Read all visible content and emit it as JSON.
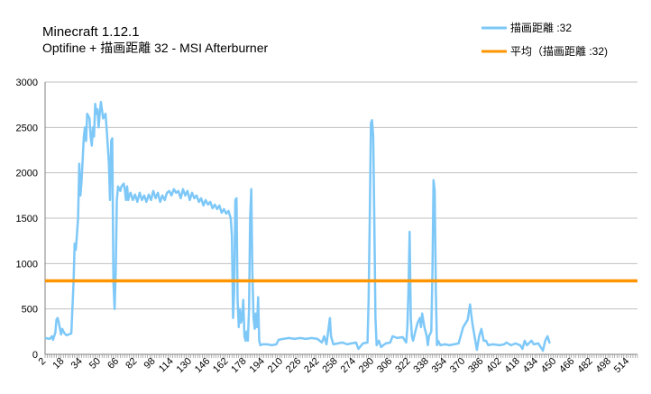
{
  "chart_data": {
    "type": "line",
    "title": "Minecraft 1.12.1",
    "subtitle": "Optifine +  描画距離 32 - MSI Afterburner",
    "ylim": [
      0,
      3000
    ],
    "y_ticks": [
      0,
      500,
      1000,
      1500,
      2000,
      2500,
      3000
    ],
    "x_range": [
      1,
      521
    ],
    "x_tick_labels": [
      "2",
      "18",
      "34",
      "50",
      "66",
      "82",
      "98",
      "114",
      "130",
      "146",
      "162",
      "178",
      "194",
      "210",
      "226",
      "242",
      "258",
      "274",
      "290",
      "306",
      "322",
      "338",
      "354",
      "370",
      "386",
      "402",
      "418",
      "434",
      "450",
      "466",
      "482",
      "498",
      "514"
    ],
    "grid": "horizontal",
    "legend_position": "top-right",
    "colors": {
      "series": "#7ec8f8",
      "average": "#ff9500",
      "grid": "#c0c0c0",
      "axis": "#808080"
    },
    "series": [
      {
        "name": "描画距離 :32",
        "points": [
          [
            1,
            180
          ],
          [
            5,
            170
          ],
          [
            7,
            200
          ],
          [
            8,
            160
          ],
          [
            10,
            240
          ],
          [
            11,
            380
          ],
          [
            12,
            400
          ],
          [
            13,
            350
          ],
          [
            15,
            220
          ],
          [
            16,
            280
          ],
          [
            18,
            230
          ],
          [
            20,
            210
          ],
          [
            24,
            230
          ],
          [
            26,
            800
          ],
          [
            27,
            1220
          ],
          [
            28,
            1150
          ],
          [
            30,
            1500
          ],
          [
            31,
            2100
          ],
          [
            32,
            1750
          ],
          [
            33,
            1900
          ],
          [
            35,
            2400
          ],
          [
            36,
            2500
          ],
          [
            37,
            2350
          ],
          [
            38,
            2650
          ],
          [
            40,
            2600
          ],
          [
            41,
            2400
          ],
          [
            42,
            2300
          ],
          [
            43,
            2500
          ],
          [
            44,
            2400
          ],
          [
            45,
            2760
          ],
          [
            46,
            2650
          ],
          [
            47,
            2700
          ],
          [
            48,
            2500
          ],
          [
            49,
            2650
          ],
          [
            50,
            2780
          ],
          [
            52,
            2600
          ],
          [
            54,
            2650
          ],
          [
            55,
            2500
          ],
          [
            57,
            2100
          ],
          [
            58,
            1700
          ],
          [
            59,
            2350
          ],
          [
            60,
            2380
          ],
          [
            61,
            800
          ],
          [
            62,
            500
          ],
          [
            63,
            900
          ],
          [
            64,
            1700
          ],
          [
            65,
            1850
          ],
          [
            67,
            1800
          ],
          [
            68,
            1850
          ],
          [
            70,
            1880
          ],
          [
            71,
            1820
          ],
          [
            72,
            1700
          ],
          [
            73,
            1850
          ],
          [
            74,
            1700
          ],
          [
            75,
            1750
          ],
          [
            76,
            1780
          ],
          [
            78,
            1700
          ],
          [
            80,
            1760
          ],
          [
            82,
            1680
          ],
          [
            84,
            1780
          ],
          [
            86,
            1700
          ],
          [
            88,
            1750
          ],
          [
            90,
            1680
          ],
          [
            92,
            1760
          ],
          [
            94,
            1700
          ],
          [
            96,
            1800
          ],
          [
            98,
            1720
          ],
          [
            100,
            1780
          ],
          [
            102,
            1680
          ],
          [
            104,
            1750
          ],
          [
            106,
            1700
          ],
          [
            108,
            1780
          ],
          [
            110,
            1800
          ],
          [
            112,
            1750
          ],
          [
            114,
            1820
          ],
          [
            116,
            1780
          ],
          [
            118,
            1800
          ],
          [
            120,
            1720
          ],
          [
            122,
            1820
          ],
          [
            124,
            1750
          ],
          [
            126,
            1800
          ],
          [
            128,
            1700
          ],
          [
            130,
            1780
          ],
          [
            132,
            1720
          ],
          [
            134,
            1750
          ],
          [
            136,
            1680
          ],
          [
            138,
            1720
          ],
          [
            140,
            1640
          ],
          [
            142,
            1700
          ],
          [
            144,
            1650
          ],
          [
            146,
            1680
          ],
          [
            148,
            1610
          ],
          [
            150,
            1650
          ],
          [
            152,
            1600
          ],
          [
            154,
            1640
          ],
          [
            156,
            1560
          ],
          [
            158,
            1600
          ],
          [
            160,
            1550
          ],
          [
            162,
            1580
          ],
          [
            164,
            1500
          ],
          [
            165,
            1300
          ],
          [
            166,
            400
          ],
          [
            167,
            700
          ],
          [
            168,
            1700
          ],
          [
            169,
            1720
          ],
          [
            170,
            600
          ],
          [
            171,
            300
          ],
          [
            172,
            500
          ],
          [
            173,
            350
          ],
          [
            174,
            400
          ],
          [
            175,
            600
          ],
          [
            176,
            200
          ],
          [
            177,
            150
          ],
          [
            178,
            250
          ],
          [
            179,
            150
          ],
          [
            180,
            500
          ],
          [
            181,
            1500
          ],
          [
            182,
            1820
          ],
          [
            183,
            900
          ],
          [
            184,
            400
          ],
          [
            185,
            280
          ],
          [
            186,
            450
          ],
          [
            187,
            300
          ],
          [
            188,
            630
          ],
          [
            189,
            150
          ],
          [
            190,
            100
          ],
          [
            192,
            110
          ],
          [
            196,
            110
          ],
          [
            200,
            100
          ],
          [
            204,
            110
          ],
          [
            206,
            160
          ],
          [
            210,
            170
          ],
          [
            215,
            180
          ],
          [
            220,
            170
          ],
          [
            225,
            180
          ],
          [
            230,
            170
          ],
          [
            235,
            180
          ],
          [
            240,
            170
          ],
          [
            244,
            130
          ],
          [
            246,
            200
          ],
          [
            248,
            110
          ],
          [
            250,
            300
          ],
          [
            251,
            400
          ],
          [
            252,
            200
          ],
          [
            254,
            110
          ],
          [
            258,
            120
          ],
          [
            262,
            130
          ],
          [
            266,
            110
          ],
          [
            270,
            120
          ],
          [
            274,
            130
          ],
          [
            276,
            60
          ],
          [
            280,
            120
          ],
          [
            284,
            130
          ],
          [
            285,
            600
          ],
          [
            286,
            1500
          ],
          [
            287,
            2550
          ],
          [
            288,
            2580
          ],
          [
            289,
            2400
          ],
          [
            290,
            1500
          ],
          [
            291,
            400
          ],
          [
            292,
            100
          ],
          [
            294,
            150
          ],
          [
            296,
            80
          ],
          [
            300,
            120
          ],
          [
            304,
            130
          ],
          [
            306,
            200
          ],
          [
            310,
            180
          ],
          [
            315,
            190
          ],
          [
            318,
            130
          ],
          [
            319,
            300
          ],
          [
            320,
            700
          ],
          [
            321,
            1350
          ],
          [
            322,
            400
          ],
          [
            323,
            200
          ],
          [
            324,
            150
          ],
          [
            326,
            250
          ],
          [
            328,
            350
          ],
          [
            330,
            400
          ],
          [
            331,
            300
          ],
          [
            332,
            450
          ],
          [
            334,
            300
          ],
          [
            336,
            200
          ],
          [
            337,
            100
          ],
          [
            338,
            200
          ],
          [
            340,
            250
          ],
          [
            341,
            900
          ],
          [
            342,
            1920
          ],
          [
            343,
            1800
          ],
          [
            344,
            700
          ],
          [
            345,
            100
          ],
          [
            346,
            150
          ],
          [
            348,
            100
          ],
          [
            352,
            110
          ],
          [
            356,
            100
          ],
          [
            360,
            110
          ],
          [
            364,
            120
          ],
          [
            368,
            300
          ],
          [
            372,
            380
          ],
          [
            374,
            550
          ],
          [
            376,
            350
          ],
          [
            378,
            200
          ],
          [
            380,
            50
          ],
          [
            382,
            200
          ],
          [
            384,
            280
          ],
          [
            386,
            150
          ],
          [
            388,
            150
          ],
          [
            390,
            100
          ],
          [
            394,
            110
          ],
          [
            400,
            100
          ],
          [
            404,
            110
          ],
          [
            406,
            130
          ],
          [
            410,
            100
          ],
          [
            414,
            120
          ],
          [
            418,
            100
          ],
          [
            420,
            60
          ],
          [
            422,
            150
          ],
          [
            424,
            100
          ],
          [
            428,
            150
          ],
          [
            430,
            110
          ],
          [
            434,
            120
          ],
          [
            438,
            40
          ],
          [
            440,
            150
          ],
          [
            442,
            200
          ],
          [
            444,
            120
          ]
        ]
      },
      {
        "name": "平均（描画距離 :32)",
        "points": [
          [
            1,
            810
          ],
          [
            521,
            810
          ]
        ]
      }
    ]
  }
}
